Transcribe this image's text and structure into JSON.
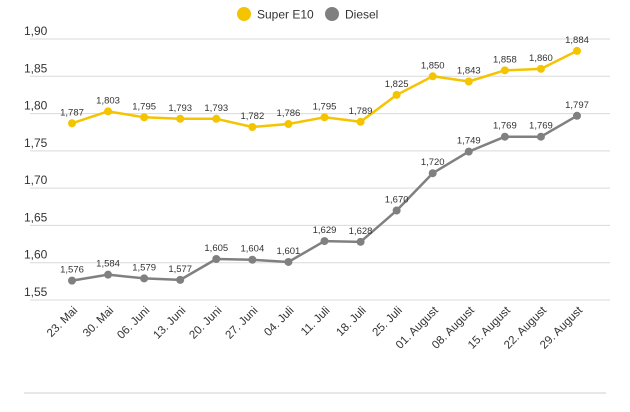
{
  "chart_data": {
    "type": "line",
    "categories": [
      "23. Mai",
      "30. Mai",
      "06. Juni",
      "13. Juni",
      "20. Juni",
      "27. Juni",
      "04. Juli",
      "11. Juli",
      "18. Juli",
      "25. Juli",
      "01. August",
      "08. August",
      "15. August",
      "22. August",
      "29. August"
    ],
    "series": [
      {
        "name": "Super E10",
        "color": "#f5c400",
        "values": [
          1.787,
          1.803,
          1.795,
          1.793,
          1.793,
          1.782,
          1.786,
          1.795,
          1.789,
          1.825,
          1.85,
          1.843,
          1.858,
          1.86,
          1.884
        ],
        "labels": [
          "1,787",
          "1,803",
          "1,795",
          "1,793",
          "1,793",
          "1,782",
          "1,786",
          "1,795",
          "1,789",
          "1,825",
          "1,850",
          "1,843",
          "1,858",
          "1,860",
          "1,884"
        ]
      },
      {
        "name": "Diesel",
        "color": "#808080",
        "values": [
          1.576,
          1.584,
          1.579,
          1.577,
          1.605,
          1.604,
          1.601,
          1.629,
          1.628,
          1.67,
          1.72,
          1.749,
          1.769,
          1.769,
          1.797
        ],
        "labels": [
          "1,576",
          "1,584",
          "1,579",
          "1,577",
          "1,605",
          "1,604",
          "1,601",
          "1,629",
          "1,628",
          "1,670",
          "1,720",
          "1,749",
          "1,769",
          "1,769",
          "1,797"
        ]
      }
    ],
    "ylim": [
      1.55,
      1.9
    ],
    "yticks": [
      1.55,
      1.6,
      1.65,
      1.7,
      1.75,
      1.8,
      1.85,
      1.9
    ],
    "ytick_labels": [
      "1,55",
      "1,60",
      "1,65",
      "1,70",
      "1,75",
      "1,80",
      "1,85",
      "1,90"
    ],
    "grid": true,
    "legend_position": "top-center"
  }
}
